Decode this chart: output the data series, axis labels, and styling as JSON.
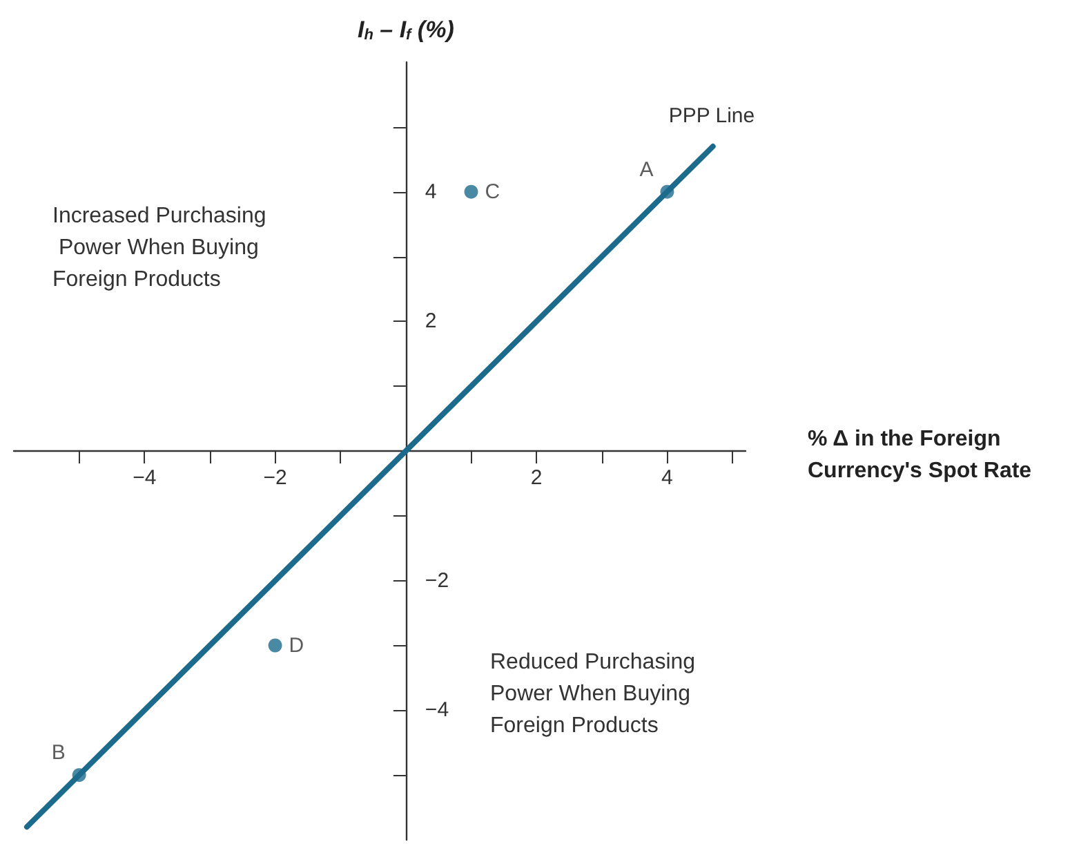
{
  "chart_data": {
    "type": "scatter",
    "xlabel": "% Δ in the Foreign Currency's Spot Rate",
    "ylabel": "I$_{h}$ – I$_{f}$ (%)",
    "xlim": [
      -6,
      5.2
    ],
    "ylim": [
      -6,
      6
    ],
    "xticks": [
      {
        "value": -5,
        "label": null
      },
      -4,
      {
        "value": -3,
        "label": null
      },
      -2,
      {
        "value": -1,
        "label": null
      },
      {
        "value": 0,
        "label": null
      },
      {
        "value": 1,
        "label": null
      },
      2,
      {
        "value": 3,
        "label": null
      },
      4,
      {
        "value": 5,
        "label": null
      }
    ],
    "yticks": [
      {
        "value": -5,
        "label": null
      },
      -4,
      {
        "value": -3,
        "label": null
      },
      -2,
      {
        "value": -1,
        "label": null
      },
      {
        "value": 0,
        "label": null
      },
      {
        "value": 1,
        "label": null
      },
      2,
      {
        "value": 3,
        "label": null
      },
      4,
      {
        "value": 5,
        "label": null
      }
    ],
    "series": [
      {
        "name": "PPP Line",
        "type": "line",
        "color": "#1c6b8c",
        "marker": "none",
        "x": [
          -5.8,
          4.7
        ],
        "values": [
          -5.8,
          4.7
        ]
      },
      {
        "color": "#1c6b8c",
        "marker": "circle",
        "x": [
          4,
          -5,
          1,
          -2
        ],
        "values": [
          4,
          -5,
          4,
          -3
        ],
        "value_labels": [
          "A",
          "B",
          "C",
          "D"
        ]
      }
    ],
    "annotations": [
      "Increased Purchasing Power When Buying Foreign Products",
      "Reduced Purchasing Power When Buying Foreign Products"
    ],
    "legend": false
  }
}
